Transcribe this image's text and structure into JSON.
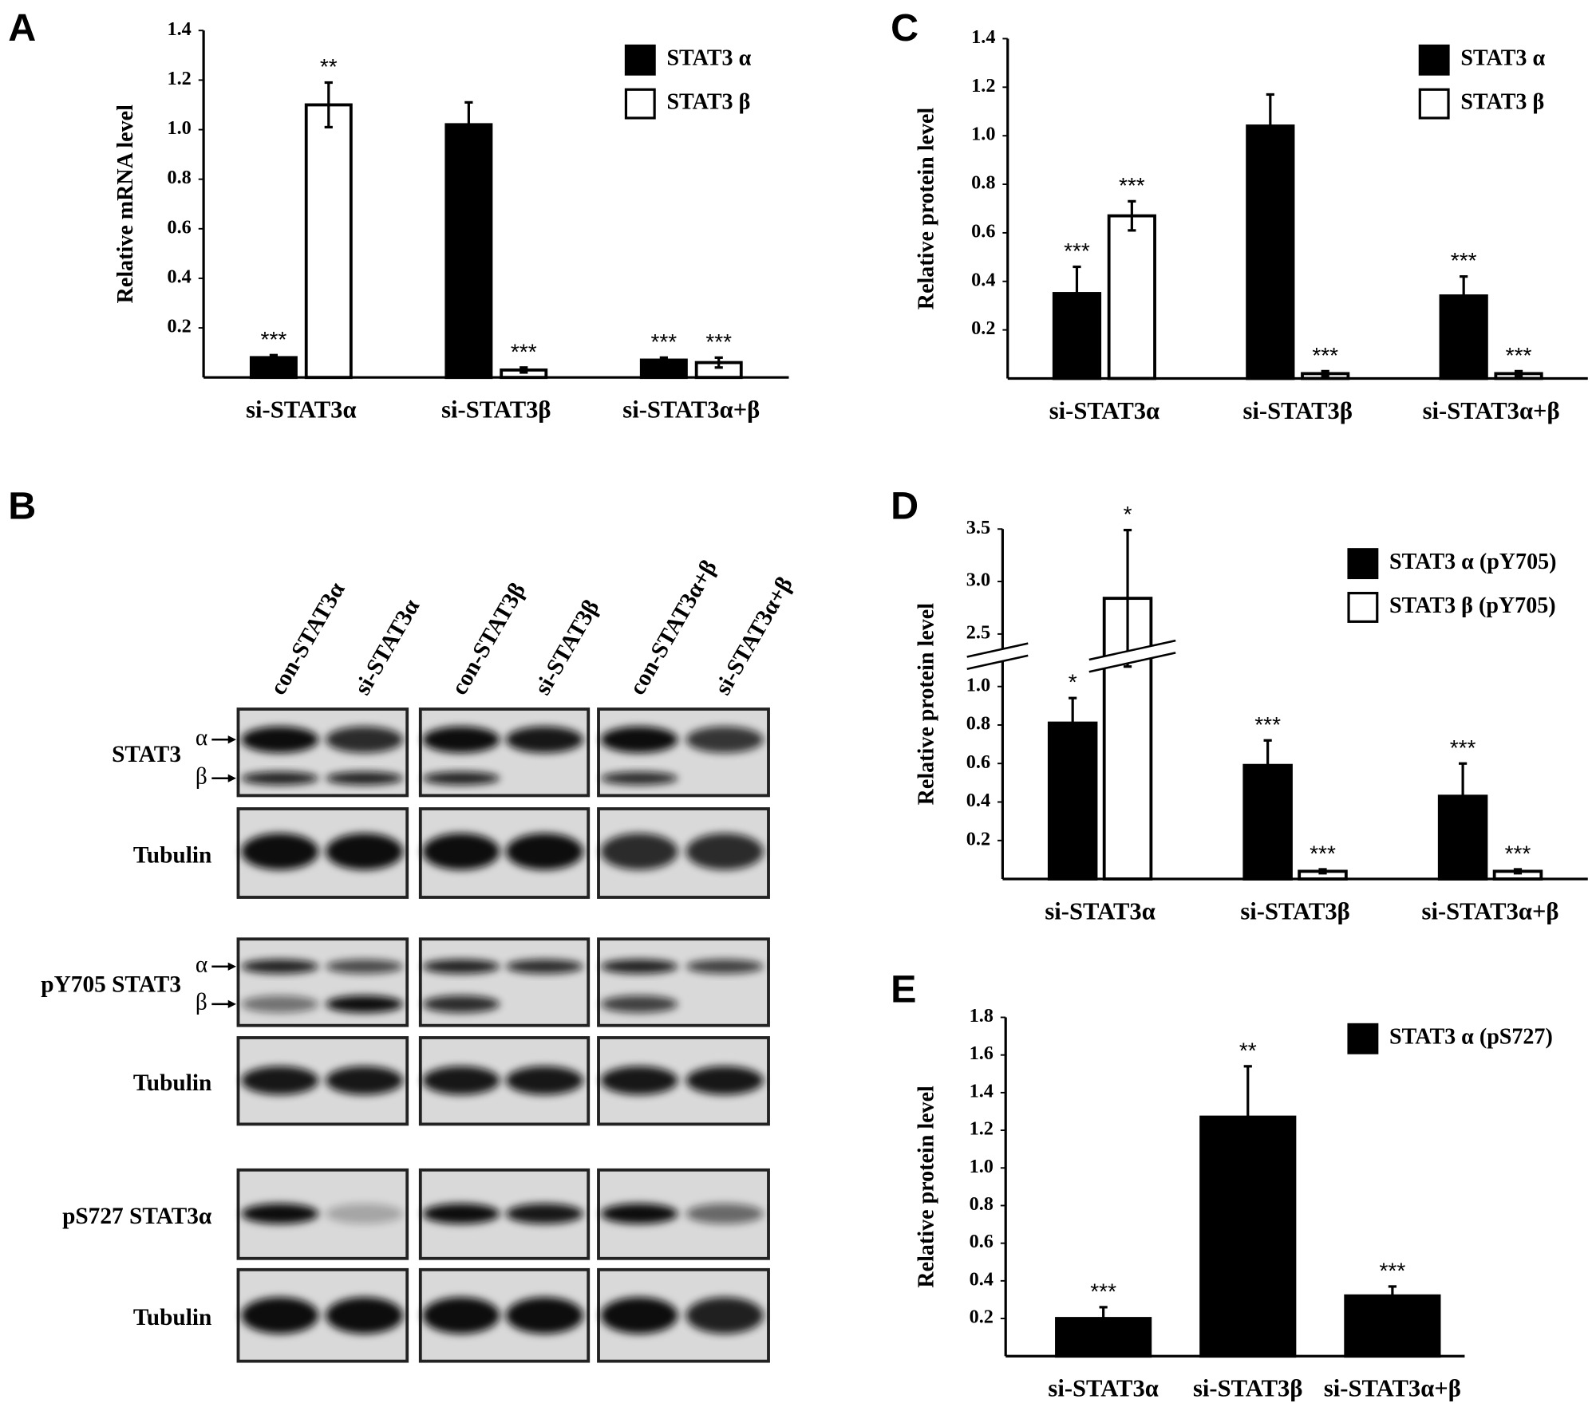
{
  "chart_data": [
    {
      "panel": "A",
      "type": "bar",
      "ylabel": "Relative mRNA level",
      "categories": [
        "si-STAT3α",
        "si-STAT3β",
        "si-STAT3α+β"
      ],
      "series": [
        {
          "name": "STAT3 α",
          "color": "#000000",
          "values": [
            0.08,
            1.02,
            0.07
          ],
          "errors": [
            0.01,
            0.09,
            0.01
          ],
          "annotations": [
            "***",
            null,
            "***"
          ]
        },
        {
          "name": "STAT3 β",
          "color": "#ffffff",
          "values": [
            1.1,
            0.03,
            0.06
          ],
          "errors": [
            0.09,
            0.01,
            0.02
          ],
          "annotations": [
            "**",
            "***",
            "***"
          ]
        }
      ],
      "ylim": [
        0,
        1.4
      ],
      "yticks": [
        0.2,
        0.4,
        0.6,
        0.8,
        {
          "value": 1,
          "label": "1.0"
        },
        1.2,
        1.4
      ],
      "legend": "upper right"
    },
    {
      "panel": "C",
      "type": "bar",
      "ylabel": "Relative protein level",
      "categories": [
        "si-STAT3α",
        "si-STAT3β",
        "si-STAT3α+β"
      ],
      "series": [
        {
          "name": "STAT3 α",
          "color": "#000000",
          "values": [
            0.35,
            1.04,
            0.34
          ],
          "errors": [
            0.11,
            0.13,
            0.08
          ],
          "annotations": [
            "***",
            null,
            "***"
          ]
        },
        {
          "name": "STAT3 β",
          "color": "#ffffff",
          "values": [
            0.67,
            0.02,
            0.02
          ],
          "errors": [
            0.06,
            0.01,
            0.01
          ],
          "annotations": [
            "***",
            "***",
            "***"
          ]
        }
      ],
      "ylim": [
        0,
        1.4
      ],
      "yticks": [
        0.2,
        0.4,
        0.6,
        0.8,
        {
          "value": 1,
          "label": "1.0"
        },
        1.2,
        1.4
      ],
      "legend": "upper right"
    },
    {
      "panel": "D",
      "type": "bar",
      "ylabel": "Relative protein level",
      "categories": [
        "si-STAT3α",
        "si-STAT3β",
        "si-STAT3α+β"
      ],
      "series": [
        {
          "name": "STAT3 α (pY705)",
          "color": "#000000",
          "values": [
            0.81,
            0.59,
            0.43
          ],
          "errors": [
            0.13,
            0.13,
            0.17
          ],
          "annotations": [
            "*",
            "***",
            "***"
          ]
        },
        {
          "name": "STAT3 β (pY705)",
          "color": "#ffffff",
          "values": [
            2.84,
            0.04,
            0.04
          ],
          "errors": [
            0.65,
            0.01,
            0.01
          ],
          "annotations": [
            "*",
            "***",
            "***"
          ]
        }
      ],
      "ylim": [
        0,
        3.5
      ],
      "yticks": [
        0.2,
        0.4,
        0.6,
        0.8,
        {
          "value": 1,
          "label": "1.0"
        },
        2.5,
        {
          "value": 3,
          "label": "3.0"
        },
        3.5
      ],
      "axis_break": true,
      "legend": "upper right"
    },
    {
      "panel": "E",
      "type": "bar",
      "ylabel": "Relative protein level",
      "categories": [
        "si-STAT3α",
        "si-STAT3β",
        "si-STAT3α+β"
      ],
      "series": [
        {
          "name": "STAT3 α (pS727)",
          "color": "#000000",
          "values": [
            0.2,
            1.27,
            0.32
          ],
          "errors": [
            0.06,
            0.27,
            0.05
          ],
          "annotations": [
            "***",
            "**",
            "***"
          ]
        }
      ],
      "ylim": [
        0,
        1.8
      ],
      "yticks": [
        0.2,
        0.4,
        0.6,
        0.8,
        {
          "value": 1,
          "label": "1.0"
        },
        1.2,
        1.4,
        1.6,
        1.8
      ],
      "legend": "upper right"
    }
  ],
  "blot": {
    "panel": "B",
    "lanes": [
      "con-STAT3α",
      "si-STAT3α",
      "con-STAT3β",
      "si-STAT3β",
      "con-STAT3α+β",
      "si-STAT3α+β"
    ],
    "rows": [
      {
        "label": "STAT3",
        "markers": [
          "α",
          "β"
        ]
      },
      {
        "label": "Tubulin"
      },
      {
        "label": "pY705 STAT3",
        "markers": [
          "α",
          "β"
        ]
      },
      {
        "label": "Tubulin"
      },
      {
        "label": "pS727 STAT3α"
      },
      {
        "label": "Tubulin"
      }
    ]
  }
}
